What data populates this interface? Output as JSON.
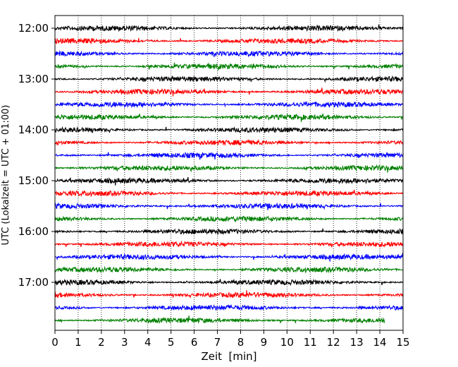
{
  "chart_data": {
    "type": "line",
    "title": "",
    "xlabel": "Zeit  [min]",
    "ylabel": "UTC (Lokalzeit = UTC + 01:00)",
    "xlim": [
      0,
      15
    ],
    "x_ticks": [
      "0",
      "1",
      "2",
      "3",
      "4",
      "5",
      "6",
      "7",
      "8",
      "9",
      "10",
      "11",
      "12",
      "13",
      "14",
      "15"
    ],
    "y_ticks": [
      "12:00",
      "13:00",
      "14:00",
      "15:00",
      "16:00",
      "17:00"
    ],
    "trace_interval_min": 15,
    "start_time": "12:00",
    "grid": "vertical dotted",
    "colors": [
      "#000000",
      "#ff0000",
      "#0000ff",
      "#008000"
    ],
    "traces": [
      {
        "start": "12:00",
        "color": "#000000"
      },
      {
        "start": "12:15",
        "color": "#ff0000"
      },
      {
        "start": "12:30",
        "color": "#0000ff"
      },
      {
        "start": "12:45",
        "color": "#008000"
      },
      {
        "start": "13:00",
        "color": "#000000"
      },
      {
        "start": "13:15",
        "color": "#ff0000"
      },
      {
        "start": "13:30",
        "color": "#0000ff"
      },
      {
        "start": "13:45",
        "color": "#008000"
      },
      {
        "start": "14:00",
        "color": "#000000"
      },
      {
        "start": "14:15",
        "color": "#ff0000"
      },
      {
        "start": "14:30",
        "color": "#0000ff"
      },
      {
        "start": "14:45",
        "color": "#008000"
      },
      {
        "start": "15:00",
        "color": "#000000"
      },
      {
        "start": "15:15",
        "color": "#ff0000"
      },
      {
        "start": "15:30",
        "color": "#0000ff"
      },
      {
        "start": "15:45",
        "color": "#008000"
      },
      {
        "start": "16:00",
        "color": "#000000"
      },
      {
        "start": "16:15",
        "color": "#ff0000"
      },
      {
        "start": "16:30",
        "color": "#0000ff"
      },
      {
        "start": "16:45",
        "color": "#008000"
      },
      {
        "start": "17:00",
        "color": "#000000"
      },
      {
        "start": "17:15",
        "color": "#ff0000"
      },
      {
        "start": "17:30",
        "color": "#0000ff"
      },
      {
        "start": "17:45",
        "color": "#008000",
        "end_min": 14.2
      }
    ]
  }
}
